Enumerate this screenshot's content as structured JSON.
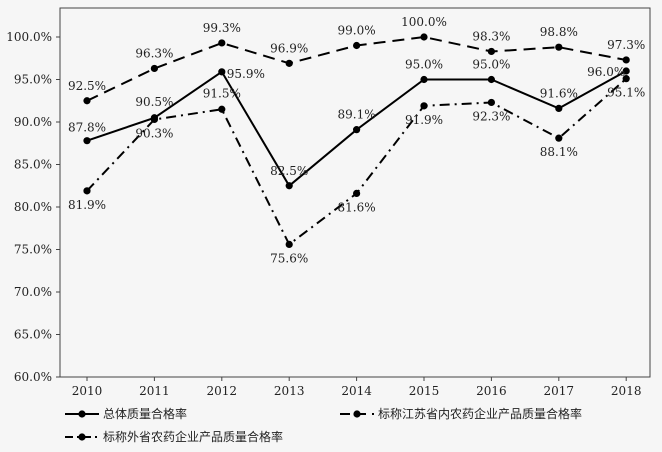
{
  "chart_data": {
    "type": "line",
    "title": "",
    "xlabel": "",
    "ylabel": "",
    "x": [
      "2010",
      "2011",
      "2012",
      "2013",
      "2014",
      "2015",
      "2016",
      "2017",
      "2018"
    ],
    "ylim": [
      60,
      100
    ],
    "yticks": [
      "60.0%",
      "65.0%",
      "70.0%",
      "75.0%",
      "80.0%",
      "85.0%",
      "90.0%",
      "95.0%",
      "100.0%"
    ],
    "grid": false,
    "legend_position": "bottom",
    "series": [
      {
        "name": "总体质量合格率",
        "style": "solid",
        "values": [
          87.8,
          90.5,
          95.9,
          82.5,
          89.1,
          95.0,
          95.0,
          91.6,
          96.0
        ],
        "labels": [
          "87.8%",
          "90.5%",
          "95.9%",
          "82.5%",
          "89.1%",
          "95.0%",
          "95.0%",
          "91.6%",
          "96.0%"
        ]
      },
      {
        "name": "标称江苏省内农药企业产品质量合格率",
        "style": "dashed",
        "values": [
          92.5,
          96.3,
          99.3,
          96.9,
          99.0,
          100.0,
          98.3,
          98.8,
          97.3
        ],
        "labels": [
          "92.5%",
          "96.3%",
          "99.3%",
          "96.9%",
          "99.0%",
          "100.0%",
          "98.3%",
          "98.8%",
          "97.3%"
        ]
      },
      {
        "name": "标称外省农药企业产品质量合格率",
        "style": "dashdot",
        "values": [
          81.9,
          90.3,
          91.5,
          75.6,
          81.6,
          91.9,
          92.3,
          88.1,
          95.1
        ],
        "labels": [
          "81.9%",
          "90.3%",
          "91.5%",
          "75.6%",
          "81.6%",
          "91.9%",
          "92.3%",
          "88.1%",
          "95.1%"
        ]
      }
    ]
  }
}
